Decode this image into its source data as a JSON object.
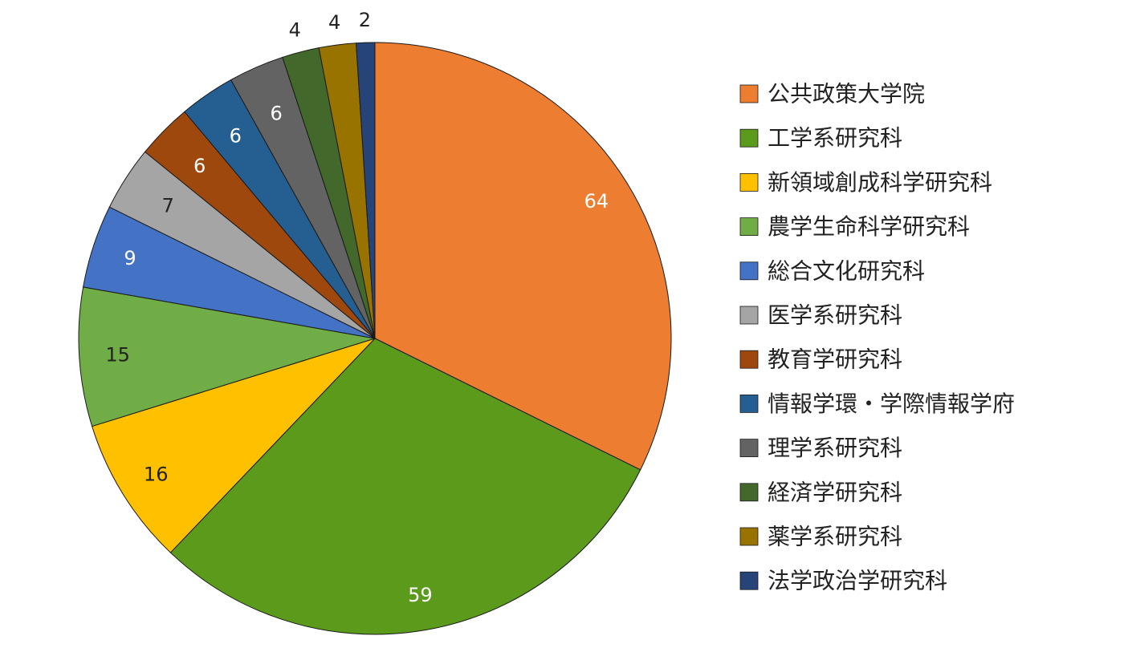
{
  "chart_data": {
    "type": "pie",
    "start": "12 o'clock",
    "direction": "clockwise",
    "legend": "right",
    "slices": [
      {
        "label": "公共政策大学院",
        "value": 64,
        "color": "#ED7D31",
        "label_color": "#ffffff"
      },
      {
        "label": "工学系研究科",
        "value": 59,
        "color": "#5B9A1B",
        "label_color": "#ffffff"
      },
      {
        "label": "新領域創成科学研究科",
        "value": 16,
        "color": "#FFC000",
        "label_color": "#222222"
      },
      {
        "label": "農学生命科学研究科",
        "value": 15,
        "color": "#70AD47",
        "label_color": "#222222"
      },
      {
        "label": "総合文化研究科",
        "value": 9,
        "color": "#4472C4",
        "label_color": "#ffffff"
      },
      {
        "label": "医学系研究科",
        "value": 7,
        "color": "#A5A5A5",
        "label_color": "#222222"
      },
      {
        "label": "教育学研究科",
        "value": 6,
        "color": "#9E480E",
        "label_color": "#ffffff"
      },
      {
        "label": "情報学環・学際情報学府",
        "value": 6,
        "color": "#255E91",
        "label_color": "#ffffff"
      },
      {
        "label": "理学系研究科",
        "value": 6,
        "color": "#636363",
        "label_color": "#ffffff"
      },
      {
        "label": "経済学研究科",
        "value": 4,
        "color": "#43682B",
        "label_color": "#222222"
      },
      {
        "label": "薬学系研究科",
        "value": 4,
        "color": "#997300",
        "label_color": "#222222"
      },
      {
        "label": "法学政治学研究科",
        "value": 2,
        "color": "#264478",
        "label_color": "#222222"
      }
    ]
  }
}
